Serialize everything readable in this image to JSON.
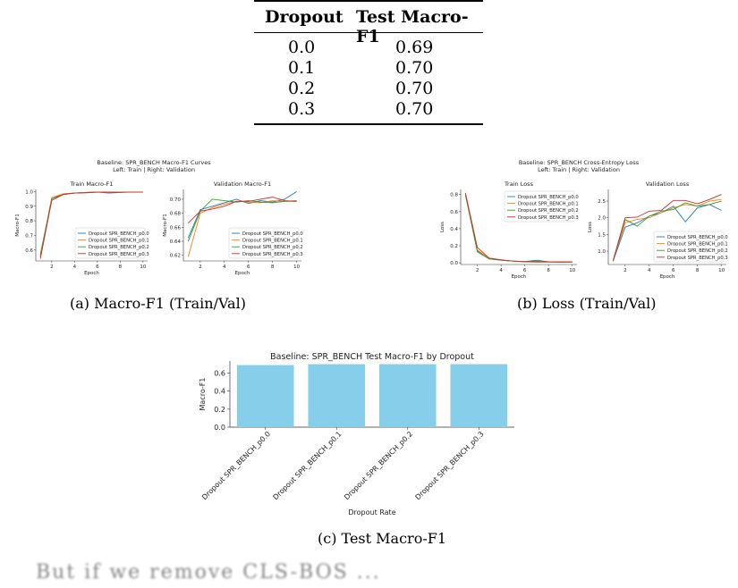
{
  "table": {
    "headers": [
      "Dropout",
      "Test Macro-F1"
    ],
    "rows": [
      {
        "dropout": "0.0",
        "f1": "0.69"
      },
      {
        "dropout": "0.1",
        "f1": "0.70"
      },
      {
        "dropout": "0.2",
        "f1": "0.70"
      },
      {
        "dropout": "0.3",
        "f1": "0.70"
      }
    ]
  },
  "figure_a": {
    "suptitle_line1": "Baseline: SPR_BENCH Macro-F1 Curves",
    "suptitle_line2": "Left: Train  |  Right: Validation",
    "caption": "(a) Macro-F1 (Train/Val)"
  },
  "figure_b": {
    "suptitle_line1": "Baseline: SPR_BENCH Cross-Entropy Loss",
    "suptitle_line2": "Left: Train  |  Right: Validation",
    "caption": "(b) Loss (Train/Val)"
  },
  "figure_c": {
    "caption": "(c) Test Macro-F1"
  },
  "footer_text": "But if we remove CLS-BOS ...",
  "colors": {
    "p0.0": "#1f77b4",
    "p0.1": "#ff7f0e",
    "p0.2": "#2ca02c",
    "p0.3": "#d62728",
    "bar": "#87ceeb"
  },
  "chart_data": [
    {
      "type": "line",
      "title": "Train Macro-F1",
      "xlabel": "Epoch",
      "ylabel": "Macro-F1",
      "x": [
        1,
        2,
        3,
        4,
        5,
        6,
        7,
        8,
        9,
        10
      ],
      "xticks": [
        2,
        4,
        6,
        8,
        10
      ],
      "yticks": [
        "0.6",
        "0.7",
        "0.8",
        "0.9",
        "1.0"
      ],
      "xlim": [
        0.6,
        10.4
      ],
      "ylim": [
        0.525,
        1.015
      ],
      "legend": "lower-right",
      "series": [
        {
          "name": "Dropout SPR_BENCH_p0.0",
          "values": [
            0.56,
            0.95,
            0.985,
            0.99,
            0.995,
            0.997,
            0.99,
            0.995,
            0.997,
            0.997
          ]
        },
        {
          "name": "Dropout SPR_BENCH_p0.1",
          "values": [
            0.55,
            0.96,
            0.985,
            0.99,
            0.993,
            0.996,
            0.995,
            0.997,
            0.997,
            0.997
          ]
        },
        {
          "name": "Dropout SPR_BENCH_p0.2",
          "values": [
            0.57,
            0.95,
            0.98,
            0.99,
            0.994,
            0.996,
            0.996,
            0.996,
            0.997,
            0.997
          ]
        },
        {
          "name": "Dropout SPR_BENCH_p0.3",
          "values": [
            0.54,
            0.94,
            0.98,
            0.99,
            0.992,
            0.996,
            0.997,
            0.995,
            0.997,
            0.997
          ]
        }
      ]
    },
    {
      "type": "line",
      "title": "Validation Macro-F1",
      "xlabel": "Epoch",
      "ylabel": "Macro-F1",
      "x": [
        1,
        2,
        3,
        4,
        5,
        6,
        7,
        8,
        9,
        10
      ],
      "xticks": [
        2,
        4,
        6,
        8,
        10
      ],
      "yticks": [
        "0.62",
        "0.64",
        "0.66",
        "0.68",
        "0.70"
      ],
      "xlim": [
        0.6,
        10.4
      ],
      "ylim": [
        0.612,
        0.714
      ],
      "legend": "lower-right",
      "series": [
        {
          "name": "Dropout SPR_BENCH_p0.0",
          "values": [
            0.645,
            0.685,
            0.69,
            0.695,
            0.7,
            0.694,
            0.698,
            0.696,
            0.7,
            0.711
          ]
        },
        {
          "name": "Dropout SPR_BENCH_p0.1",
          "values": [
            0.618,
            0.68,
            0.688,
            0.693,
            0.697,
            0.696,
            0.695,
            0.698,
            0.697,
            0.697
          ]
        },
        {
          "name": "Dropout SPR_BENCH_p0.2",
          "values": [
            0.64,
            0.683,
            0.7,
            0.698,
            0.696,
            0.698,
            0.696,
            0.695,
            0.697,
            0.698
          ]
        },
        {
          "name": "Dropout SPR_BENCH_p0.3",
          "values": [
            0.666,
            0.683,
            0.686,
            0.69,
            0.697,
            0.697,
            0.7,
            0.703,
            0.698,
            0.697
          ]
        }
      ]
    },
    {
      "type": "line",
      "title": "Train Loss",
      "xlabel": "Epoch",
      "ylabel": "Loss",
      "x": [
        1,
        2,
        3,
        4,
        5,
        6,
        7,
        8,
        9,
        10
      ],
      "xticks": [
        2,
        4,
        6,
        8,
        10
      ],
      "yticks": [
        "0.0",
        "0.2",
        "0.4",
        "0.6",
        "0.8"
      ],
      "xlim": [
        0.6,
        10.4
      ],
      "ylim": [
        -0.02,
        0.86
      ],
      "legend": "upper-right",
      "series": [
        {
          "name": "Dropout SPR_BENCH_p0.0",
          "values": [
            0.8,
            0.14,
            0.05,
            0.03,
            0.02,
            0.015,
            0.03,
            0.012,
            0.01,
            0.01
          ]
        },
        {
          "name": "Dropout SPR_BENCH_p0.1",
          "values": [
            0.8,
            0.15,
            0.05,
            0.03,
            0.02,
            0.012,
            0.01,
            0.01,
            0.008,
            0.008
          ]
        },
        {
          "name": "Dropout SPR_BENCH_p0.2",
          "values": [
            0.8,
            0.13,
            0.045,
            0.03,
            0.02,
            0.012,
            0.02,
            0.01,
            0.008,
            0.01
          ]
        },
        {
          "name": "Dropout SPR_BENCH_p0.3",
          "values": [
            0.82,
            0.18,
            0.055,
            0.035,
            0.02,
            0.013,
            0.01,
            0.01,
            0.01,
            0.01
          ]
        }
      ]
    },
    {
      "type": "line",
      "title": "Validation Loss",
      "xlabel": "Epoch",
      "ylabel": "Loss",
      "x": [
        1,
        2,
        3,
        4,
        5,
        6,
        7,
        8,
        9,
        10
      ],
      "xticks": [
        2,
        4,
        6,
        8,
        10
      ],
      "yticks": [
        "1.0",
        "1.5",
        "2.0",
        "2.5"
      ],
      "xlim": [
        0.6,
        10.4
      ],
      "ylim": [
        0.6,
        2.85
      ],
      "legend": "lower-right",
      "series": [
        {
          "name": "Dropout SPR_BENCH_p0.0",
          "values": [
            0.7,
            1.72,
            1.85,
            2.05,
            2.15,
            2.35,
            1.88,
            2.3,
            2.4,
            2.22
          ]
        },
        {
          "name": "Dropout SPR_BENCH_p0.1",
          "values": [
            0.72,
            1.85,
            1.95,
            2.0,
            2.15,
            2.3,
            2.4,
            2.35,
            2.5,
            2.55
          ]
        },
        {
          "name": "Dropout SPR_BENCH_p0.2",
          "values": [
            0.7,
            1.95,
            1.75,
            2.05,
            2.2,
            2.25,
            2.45,
            2.35,
            2.4,
            2.5
          ]
        },
        {
          "name": "Dropout SPR_BENCH_p0.3",
          "values": [
            0.72,
            2.0,
            2.02,
            2.2,
            2.22,
            2.52,
            2.52,
            2.42,
            2.55,
            2.7
          ]
        }
      ]
    },
    {
      "type": "bar",
      "title": "Baseline: SPR_BENCH Test Macro-F1 by Dropout",
      "xlabel": "Dropout Rate",
      "ylabel": "Macro-F1",
      "categories": [
        "Dropout SPR_BENCH_p0.0",
        "Dropout SPR_BENCH_p0.1",
        "Dropout SPR_BENCH_p0.2",
        "Dropout SPR_BENCH_p0.3"
      ],
      "values": [
        0.69,
        0.7,
        0.7,
        0.7
      ],
      "yticks": [
        "0.0",
        "0.2",
        "0.4",
        "0.6"
      ],
      "ylim": [
        0,
        0.735
      ]
    }
  ]
}
